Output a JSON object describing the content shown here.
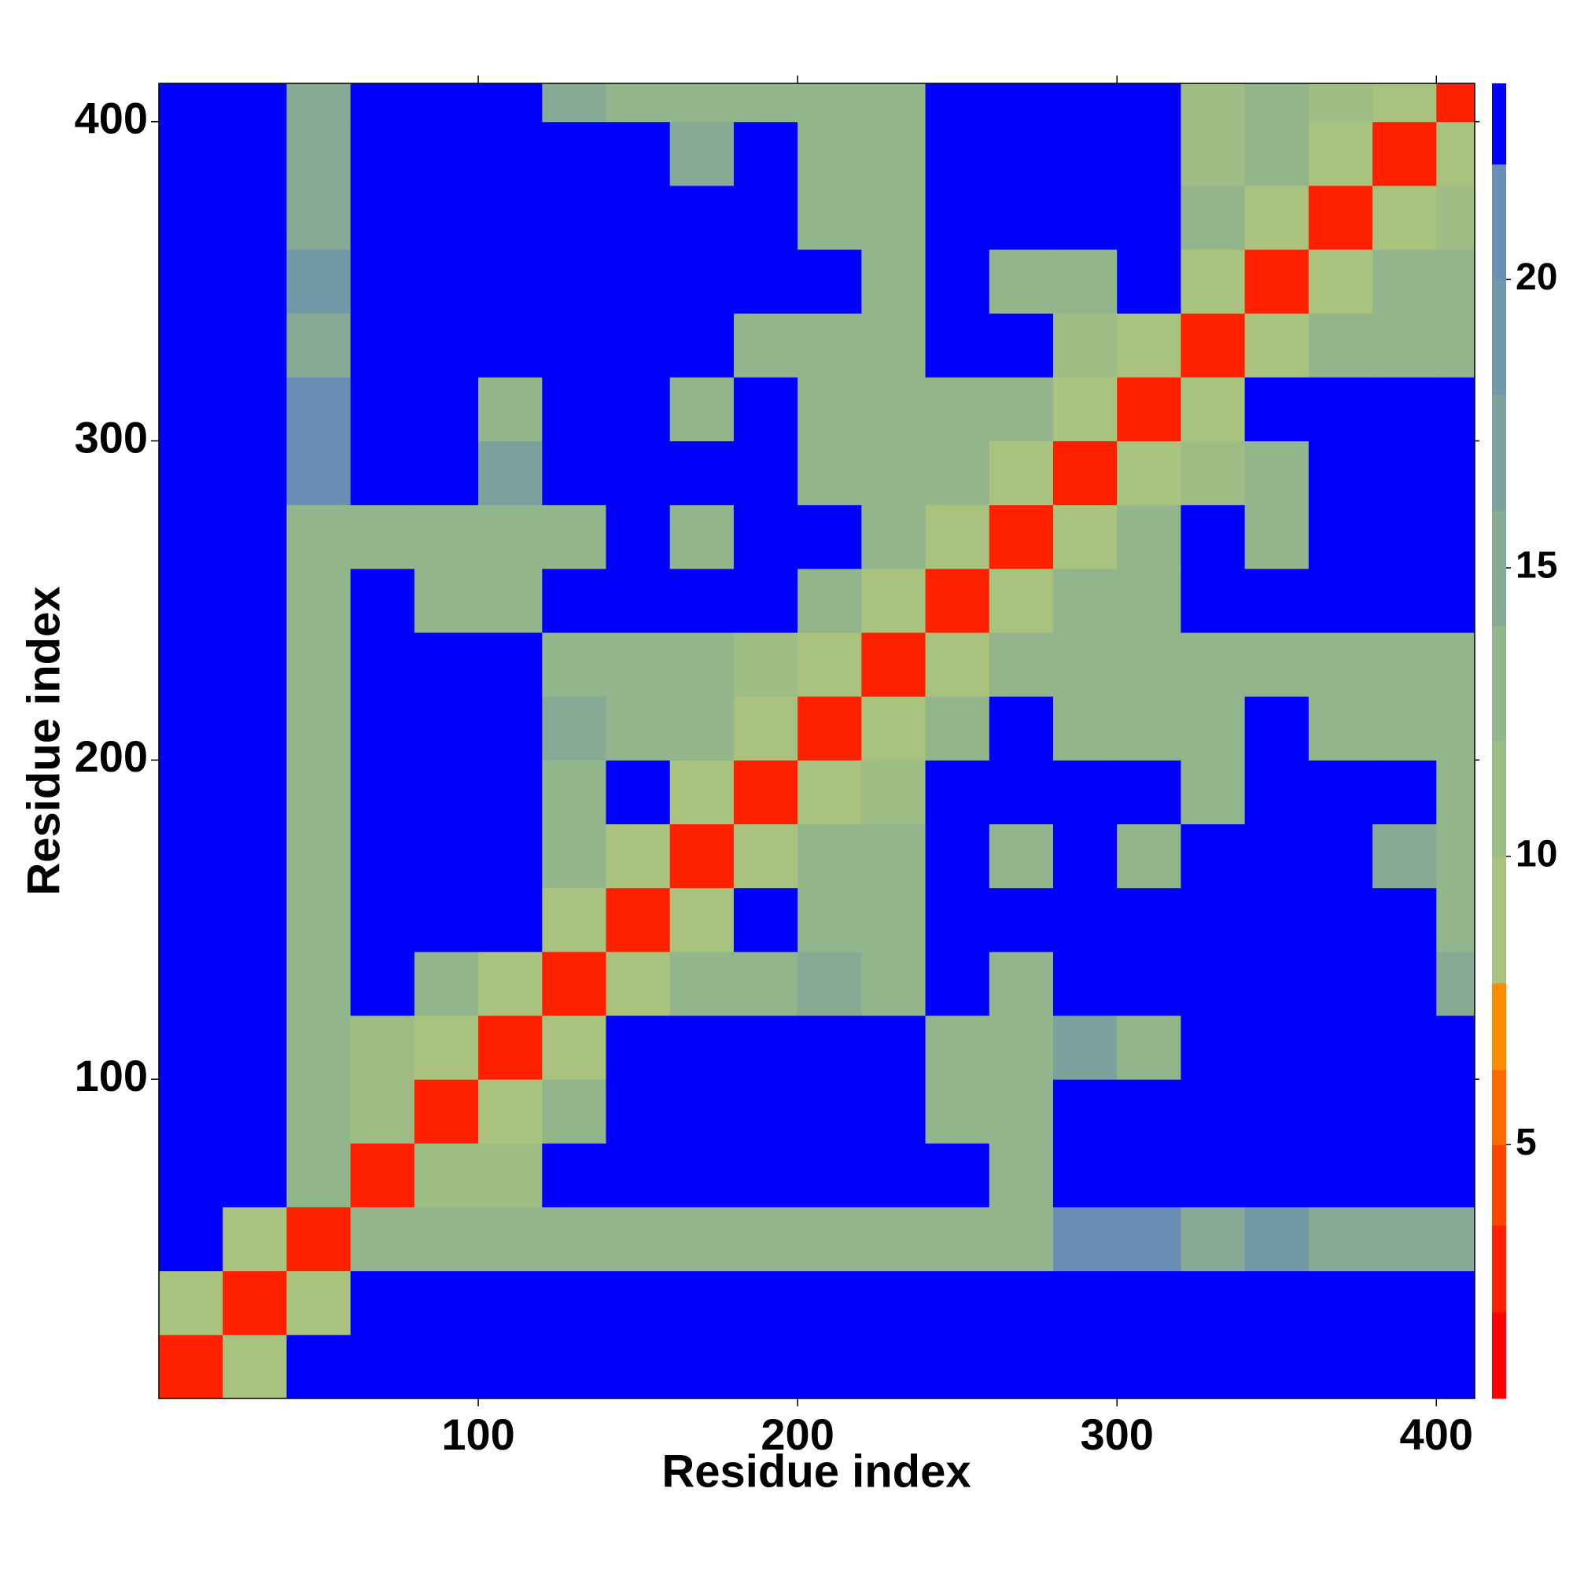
{
  "chart_data": {
    "type": "heatmap",
    "xlabel": "Residue index",
    "ylabel": "Residue index",
    "xlim": [
      0,
      412
    ],
    "ylim": [
      0,
      412
    ],
    "xticks": [
      100,
      200,
      300,
      400
    ],
    "yticks": [
      100,
      200,
      300,
      400
    ],
    "x_edges": [
      0,
      20,
      40,
      60,
      80,
      100,
      120,
      140,
      160,
      180,
      200,
      220,
      240,
      260,
      280,
      300,
      320,
      340,
      360,
      380,
      400,
      412
    ],
    "y_edges": [
      0,
      20,
      40,
      60,
      80,
      100,
      120,
      140,
      160,
      180,
      200,
      220,
      240,
      260,
      280,
      300,
      320,
      340,
      360,
      380,
      400,
      412
    ],
    "z": [
      [
        3,
        9,
        23,
        23,
        23,
        23,
        23,
        23,
        23,
        23,
        23,
        23,
        23,
        23,
        23,
        23,
        23,
        23,
        23,
        23,
        23
      ],
      [
        9,
        3,
        9,
        23,
        23,
        23,
        23,
        23,
        23,
        23,
        23,
        23,
        23,
        23,
        23,
        23,
        23,
        23,
        23,
        23,
        23
      ],
      [
        23,
        9,
        3,
        12,
        12,
        12,
        12,
        12,
        12,
        12,
        12,
        12,
        12,
        12,
        20,
        20,
        14,
        18,
        15,
        14,
        14
      ],
      [
        23,
        23,
        12,
        3,
        10,
        10,
        23,
        23,
        23,
        23,
        23,
        23,
        23,
        12,
        23,
        23,
        23,
        23,
        23,
        23,
        23
      ],
      [
        23,
        23,
        12,
        10,
        3,
        9,
        12,
        23,
        23,
        23,
        23,
        23,
        12,
        12,
        23,
        23,
        23,
        23,
        23,
        23,
        23
      ],
      [
        23,
        23,
        12,
        10,
        9,
        3,
        9,
        23,
        23,
        23,
        23,
        23,
        13,
        12,
        16,
        12,
        23,
        23,
        23,
        23,
        23
      ],
      [
        23,
        23,
        12,
        23,
        12,
        9,
        3,
        9,
        12,
        12,
        14,
        12,
        23,
        12,
        23,
        23,
        23,
        23,
        23,
        23,
        14
      ],
      [
        23,
        23,
        12,
        23,
        23,
        23,
        9,
        3,
        9,
        23,
        12,
        12,
        23,
        23,
        23,
        23,
        23,
        23,
        23,
        23,
        12
      ],
      [
        23,
        23,
        12,
        23,
        23,
        23,
        12,
        9,
        3,
        9,
        12,
        12,
        23,
        12,
        23,
        13,
        23,
        23,
        23,
        14,
        12
      ],
      [
        23,
        23,
        12,
        23,
        23,
        23,
        12,
        23,
        9,
        3,
        9,
        11,
        23,
        23,
        23,
        23,
        12,
        23,
        23,
        23,
        12
      ],
      [
        23,
        23,
        12,
        23,
        23,
        23,
        14,
        12,
        12,
        9,
        3,
        9,
        13,
        23,
        13,
        12,
        12,
        23,
        12,
        12,
        12
      ],
      [
        23,
        23,
        12,
        23,
        23,
        23,
        12,
        12,
        12,
        11,
        9,
        3,
        9,
        12,
        12,
        12,
        12,
        12,
        12,
        12,
        12
      ],
      [
        23,
        23,
        12,
        23,
        12,
        13,
        23,
        23,
        23,
        23,
        13,
        9,
        3,
        9,
        12,
        12,
        23,
        23,
        23,
        23,
        23
      ],
      [
        23,
        23,
        12,
        12,
        12,
        12,
        12,
        23,
        12,
        23,
        23,
        12,
        9,
        3,
        9,
        12,
        23,
        12,
        23,
        23,
        23
      ],
      [
        23,
        23,
        20,
        23,
        23,
        16,
        23,
        23,
        23,
        23,
        13,
        12,
        12,
        9,
        3,
        9,
        11,
        12,
        23,
        23,
        23
      ],
      [
        23,
        23,
        20,
        23,
        23,
        12,
        23,
        23,
        13,
        23,
        12,
        12,
        12,
        12,
        9,
        3,
        9,
        23,
        23,
        23,
        23
      ],
      [
        23,
        23,
        14,
        23,
        23,
        23,
        23,
        23,
        23,
        12,
        12,
        12,
        23,
        23,
        11,
        9,
        3,
        9,
        12,
        12,
        12
      ],
      [
        23,
        23,
        18,
        23,
        23,
        23,
        23,
        23,
        23,
        23,
        23,
        12,
        23,
        12,
        12,
        23,
        9,
        3,
        9,
        12,
        12
      ],
      [
        23,
        23,
        15,
        23,
        23,
        23,
        23,
        23,
        23,
        23,
        12,
        12,
        23,
        23,
        23,
        23,
        12,
        9,
        3,
        9,
        11
      ],
      [
        23,
        23,
        14,
        23,
        23,
        23,
        23,
        23,
        14,
        23,
        12,
        12,
        23,
        23,
        23,
        23,
        11,
        12,
        9,
        3,
        9
      ],
      [
        23,
        23,
        14,
        23,
        23,
        23,
        14,
        12,
        12,
        12,
        12,
        12,
        23,
        23,
        23,
        23,
        11,
        12,
        11,
        9,
        3
      ]
    ],
    "colorbar": {
      "levels": [
        0.6,
        2.1,
        3.6,
        5,
        6.3,
        7.8,
        10,
        12,
        14,
        16,
        18,
        20,
        22,
        23.4
      ],
      "colors": [
        "#ff0000",
        "#ff2000",
        "#ff4500",
        "#ff6a00",
        "#ff8c00",
        "#a9c27d",
        "#9dbd85",
        "#93b58c",
        "#87aa94",
        "#7da29e",
        "#7299a8",
        "#6a8fb5",
        "#0000ff"
      ],
      "ticks": [
        5,
        10,
        15,
        20
      ]
    }
  }
}
